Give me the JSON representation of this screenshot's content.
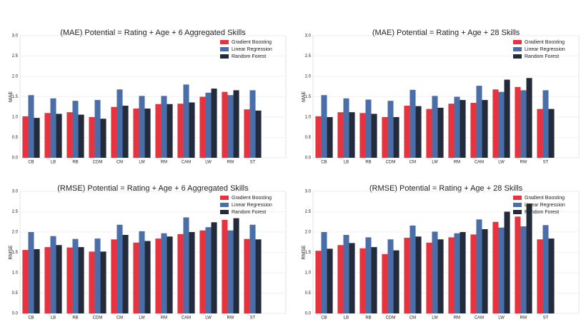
{
  "chart_data": [
    {
      "type": "bar",
      "title": "(MAE) Potential = Rating + Age + 6 Aggregated Skills",
      "ylabel": "MAE",
      "categories": [
        "CB",
        "LB",
        "RB",
        "CDM",
        "CM",
        "LM",
        "RM",
        "CAM",
        "LW",
        "RW",
        "ST"
      ],
      "series": [
        {
          "name": "Gradient Boosting",
          "color": "#e8333f",
          "values": [
            1.02,
            1.1,
            1.12,
            1.0,
            1.25,
            1.21,
            1.32,
            1.33,
            1.5,
            1.62,
            1.19
          ]
        },
        {
          "name": "Linear Regression",
          "color": "#4a6ea8",
          "values": [
            1.54,
            1.46,
            1.4,
            1.42,
            1.68,
            1.52,
            1.52,
            1.8,
            1.6,
            1.54,
            1.66
          ]
        },
        {
          "name": "Random Forest",
          "color": "#232b3a",
          "values": [
            0.98,
            1.08,
            1.06,
            0.96,
            1.28,
            1.21,
            1.32,
            1.36,
            1.7,
            1.66,
            1.16
          ]
        }
      ],
      "ylim": [
        0,
        3
      ],
      "yticks": [
        {
          "value": 0,
          "label": "0.0"
        },
        {
          "value": 0.5,
          "label": "0.5"
        },
        {
          "value": 1,
          "label": "1.0"
        },
        {
          "value": 1.5,
          "label": "1.5"
        },
        {
          "value": 2,
          "label": "2.0"
        },
        {
          "value": 2.5,
          "label": "2.5"
        },
        {
          "value": 3,
          "label": "3.0"
        }
      ],
      "grid": true,
      "legend": "upper right"
    },
    {
      "type": "bar",
      "title": "(MAE) Potential = Rating + Age + 28 Skills",
      "ylabel": "MAE",
      "categories": [
        "CB",
        "LB",
        "RB",
        "CDM",
        "CM",
        "LM",
        "RM",
        "CAM",
        "LW",
        "RW",
        "ST"
      ],
      "series": [
        {
          "name": "Gradient Boosting",
          "color": "#e8333f",
          "values": [
            1.02,
            1.12,
            1.1,
            1.0,
            1.28,
            1.2,
            1.33,
            1.35,
            1.68,
            1.74,
            1.2
          ]
        },
        {
          "name": "Linear Regression",
          "color": "#4a6ea8",
          "values": [
            1.54,
            1.46,
            1.43,
            1.4,
            1.67,
            1.52,
            1.5,
            1.77,
            1.62,
            1.66,
            1.66
          ]
        },
        {
          "name": "Random Forest",
          "color": "#232b3a",
          "values": [
            1.0,
            1.12,
            1.08,
            1.0,
            1.27,
            1.23,
            1.42,
            1.42,
            1.92,
            1.96,
            1.2
          ]
        }
      ],
      "ylim": [
        0,
        3
      ],
      "yticks": [
        {
          "value": 0,
          "label": "0.0"
        },
        {
          "value": 0.5,
          "label": "0.5"
        },
        {
          "value": 1,
          "label": "1.0"
        },
        {
          "value": 1.5,
          "label": "1.5"
        },
        {
          "value": 2,
          "label": "2.0"
        },
        {
          "value": 2.5,
          "label": "2.5"
        },
        {
          "value": 3,
          "label": "3.0"
        }
      ],
      "grid": true,
      "legend": "upper right"
    },
    {
      "type": "bar",
      "title": "(RMSE) Potential = Rating + Age + 6 Aggregated Skills",
      "ylabel": "RMSE",
      "categories": [
        "CB",
        "LB",
        "RB",
        "CDM",
        "CM",
        "LM",
        "RM",
        "CAM",
        "LW",
        "RW",
        "ST"
      ],
      "series": [
        {
          "name": "Gradient Boosting",
          "color": "#e8333f",
          "values": [
            1.56,
            1.63,
            1.62,
            1.52,
            1.82,
            1.74,
            1.84,
            1.95,
            2.04,
            2.3,
            1.83
          ]
        },
        {
          "name": "Linear Regression",
          "color": "#4a6ea8",
          "values": [
            2.0,
            1.9,
            1.83,
            1.84,
            2.18,
            2.02,
            1.97,
            2.36,
            2.12,
            2.04,
            2.18
          ]
        },
        {
          "name": "Random Forest",
          "color": "#232b3a",
          "values": [
            1.58,
            1.68,
            1.63,
            1.52,
            1.93,
            1.78,
            1.89,
            2.0,
            2.24,
            2.34,
            1.82
          ]
        }
      ],
      "ylim": [
        0,
        3
      ],
      "yticks": [
        {
          "value": 0,
          "label": "0.0"
        },
        {
          "value": 0.5,
          "label": "0.5"
        },
        {
          "value": 1,
          "label": "1.0"
        },
        {
          "value": 1.5,
          "label": "1.5"
        },
        {
          "value": 2,
          "label": "2.0"
        },
        {
          "value": 2.5,
          "label": "2.5"
        },
        {
          "value": 3,
          "label": "3.0"
        }
      ],
      "grid": true,
      "legend": "upper right"
    },
    {
      "type": "bar",
      "title": "(RMSE) Potential = Rating + Age + 28 Skills",
      "ylabel": "RMSE",
      "categories": [
        "CB",
        "LB",
        "RB",
        "CDM",
        "CM",
        "LM",
        "RM",
        "CAM",
        "LW",
        "RW",
        "ST"
      ],
      "series": [
        {
          "name": "Gradient Boosting",
          "color": "#e8333f",
          "values": [
            1.54,
            1.68,
            1.6,
            1.46,
            1.86,
            1.74,
            1.87,
            1.94,
            2.25,
            2.38,
            1.82
          ]
        },
        {
          "name": "Linear Regression",
          "color": "#4a6ea8",
          "values": [
            2.0,
            1.93,
            1.87,
            1.82,
            2.16,
            2.01,
            1.97,
            2.31,
            2.11,
            2.14,
            2.17
          ]
        },
        {
          "name": "Random Forest",
          "color": "#232b3a",
          "values": [
            1.59,
            1.73,
            1.63,
            1.55,
            1.89,
            1.82,
            2.0,
            2.07,
            2.5,
            2.7,
            1.84
          ]
        }
      ],
      "ylim": [
        0,
        3
      ],
      "yticks": [
        {
          "value": 0,
          "label": "0.0"
        },
        {
          "value": 0.5,
          "label": "0.5"
        },
        {
          "value": 1,
          "label": "1.0"
        },
        {
          "value": 1.5,
          "label": "1.5"
        },
        {
          "value": 2,
          "label": "2.0"
        },
        {
          "value": 2.5,
          "label": "2.5"
        },
        {
          "value": 3,
          "label": "3.0"
        }
      ],
      "grid": true,
      "legend": "upper right"
    }
  ]
}
